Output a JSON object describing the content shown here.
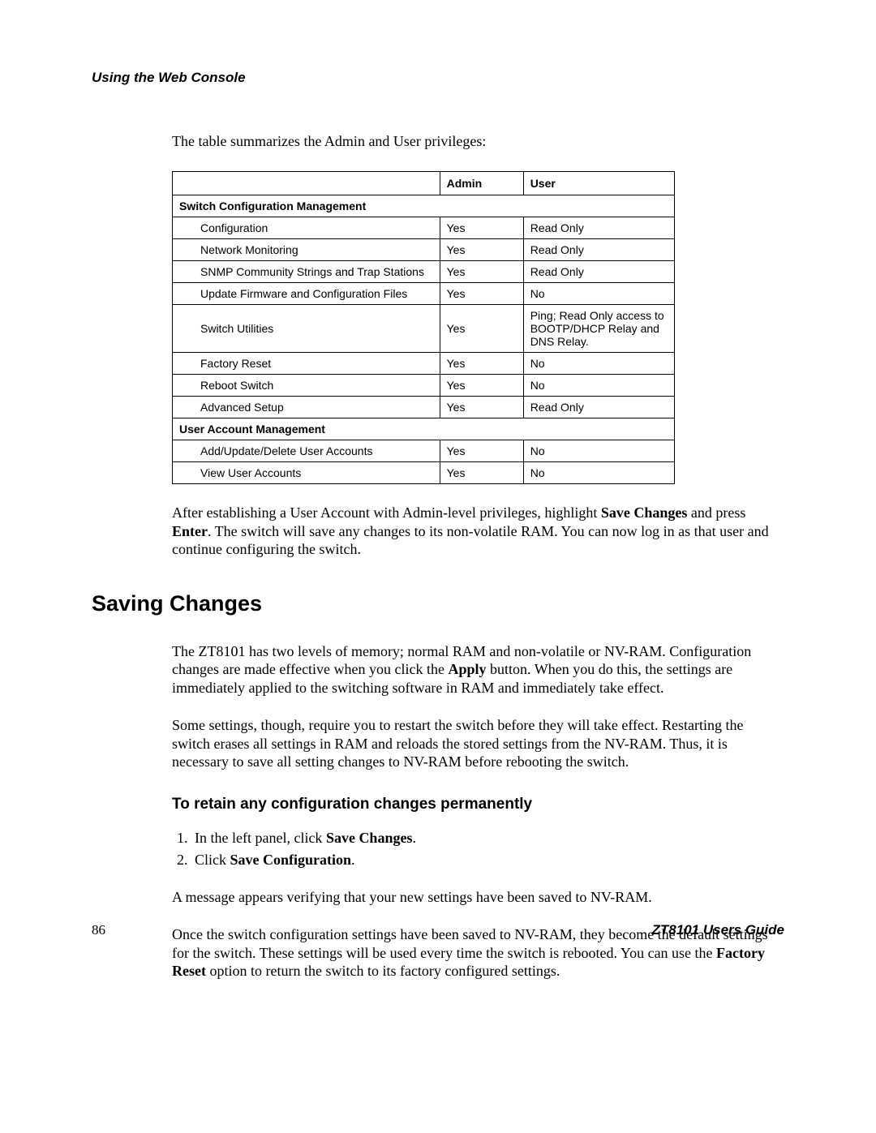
{
  "running_head": "Using the Web Console",
  "intro": "The table summarizes the Admin and User privileges:",
  "table": {
    "headers": {
      "blank": "",
      "admin": "Admin",
      "user": "User"
    },
    "sections": [
      {
        "title": "Switch Configuration Management",
        "rows": [
          {
            "label": "Configuration",
            "admin": "Yes",
            "user": "Read Only"
          },
          {
            "label": "Network Monitoring",
            "admin": "Yes",
            "user": "Read Only"
          },
          {
            "label": "SNMP Community Strings and Trap Stations",
            "admin": "Yes",
            "user": "Read Only"
          },
          {
            "label": "Update Firmware and Configuration Files",
            "admin": "Yes",
            "user": "No"
          },
          {
            "label": "Switch Utilities",
            "admin": "Yes",
            "user": "Ping; Read Only access to BOOTP/DHCP Relay and DNS Relay."
          },
          {
            "label": "Factory Reset",
            "admin": "Yes",
            "user": "No"
          },
          {
            "label": "Reboot Switch",
            "admin": "Yes",
            "user": "No"
          },
          {
            "label": "Advanced Setup",
            "admin": "Yes",
            "user": "Read Only"
          }
        ]
      },
      {
        "title": "User Account Management",
        "rows": [
          {
            "label": "Add/Update/Delete User Accounts",
            "admin": "Yes",
            "user": "No"
          },
          {
            "label": "View User Accounts",
            "admin": "Yes",
            "user": "No"
          }
        ]
      }
    ]
  },
  "after_table": {
    "prefix": "After establishing a User Account with Admin-level privileges, highlight ",
    "bold1": "Save Changes",
    "mid": " and press ",
    "bold2": "Enter",
    "suffix": ". The switch will save any changes to its non-volatile RAM. You can now log in as that user and continue configuring the switch."
  },
  "h1": "Saving Changes",
  "p1": {
    "prefix": "The ZT8101 has two levels of memory; normal RAM and non-volatile or NV-RAM. Configuration changes are made effective when you click the ",
    "bold": "Apply",
    "suffix": " button. When you do this, the settings are immediately applied to the switching software in RAM and immediately take effect."
  },
  "p2": "Some settings, though, require you to restart the switch before they will take effect. Restarting the switch erases all settings in RAM and reloads the stored settings from the NV-RAM. Thus, it is necessary to save all setting changes to NV-RAM before rebooting the switch.",
  "h2": "To retain any configuration changes permanently",
  "steps": [
    {
      "prefix": "In the left panel, click ",
      "bold": "Save Changes",
      "suffix": "."
    },
    {
      "prefix": "Click ",
      "bold": "Save Configuration",
      "suffix": "."
    }
  ],
  "p3": "A message appears verifying that your new settings have been saved to NV-RAM.",
  "p4": {
    "prefix": "Once the switch configuration settings have been saved to NV-RAM, they become the default settings for the switch. These settings will be used every time the switch is rebooted. You can use the ",
    "bold": "Factory Reset",
    "suffix": " option to return the switch to its factory configured settings."
  },
  "footer": {
    "page": "86",
    "guide": "ZT8101 Users Guide"
  }
}
